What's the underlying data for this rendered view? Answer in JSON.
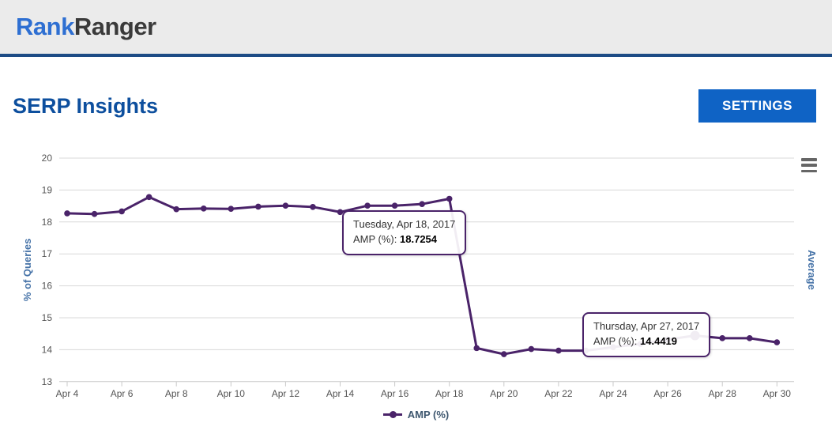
{
  "header": {
    "logo_part1": "Rank",
    "logo_part2": "Ranger"
  },
  "page": {
    "title": "SERP Insights",
    "settings_button": "SETTINGS"
  },
  "colors": {
    "accent_blue": "#0f63c5",
    "title_blue": "#0d4f9e",
    "logo_blue": "#2e6fd2",
    "logo_dark": "#3a3a3a",
    "header_bg": "#ebebeb",
    "header_border": "#1d4b85",
    "series_purple": "#4a2369",
    "axis_title_blue": "#4572a7",
    "tick_label": "#555555",
    "gridline": "#d8d8d8",
    "axis_line": "#c9c9c9",
    "menu_icon": "#666666",
    "legend_text": "#3e576f"
  },
  "chart_data": {
    "type": "line",
    "title": "",
    "ylabel_left": "% of Queries",
    "ylabel_right": "Average",
    "xlabel": "",
    "grid": true,
    "legend_position": "bottom",
    "ylim": [
      13,
      20
    ],
    "yticks": [
      20,
      19,
      18,
      17,
      16,
      15,
      14,
      13
    ],
    "x_tick_step": 2,
    "x": [
      "Apr 4",
      "Apr 5",
      "Apr 6",
      "Apr 7",
      "Apr 8",
      "Apr 9",
      "Apr 10",
      "Apr 11",
      "Apr 12",
      "Apr 13",
      "Apr 14",
      "Apr 15",
      "Apr 16",
      "Apr 17",
      "Apr 18",
      "Apr 19",
      "Apr 20",
      "Apr 21",
      "Apr 22",
      "Apr 23",
      "Apr 24",
      "Apr 25",
      "Apr 26",
      "Apr 27",
      "Apr 28",
      "Apr 29",
      "Apr 30"
    ],
    "series": [
      {
        "name": "AMP (%)",
        "color": "#4a2369",
        "values": [
          18.27,
          18.25,
          18.33,
          18.78,
          18.4,
          18.42,
          18.41,
          18.48,
          18.51,
          18.47,
          18.31,
          18.51,
          18.51,
          18.56,
          18.7254,
          14.05,
          13.86,
          14.02,
          13.97,
          13.97,
          14.08,
          14.18,
          14.32,
          14.4419,
          14.36,
          14.36,
          14.23
        ],
        "highlighted_point_index": 23
      }
    ]
  },
  "tooltips": [
    {
      "date": "Tuesday, Apr 18, 2017",
      "label": "AMP (%):",
      "value": "18.7254"
    },
    {
      "date": "Thursday, Apr 27, 2017",
      "label": "AMP (%):",
      "value": "14.4419"
    }
  ]
}
